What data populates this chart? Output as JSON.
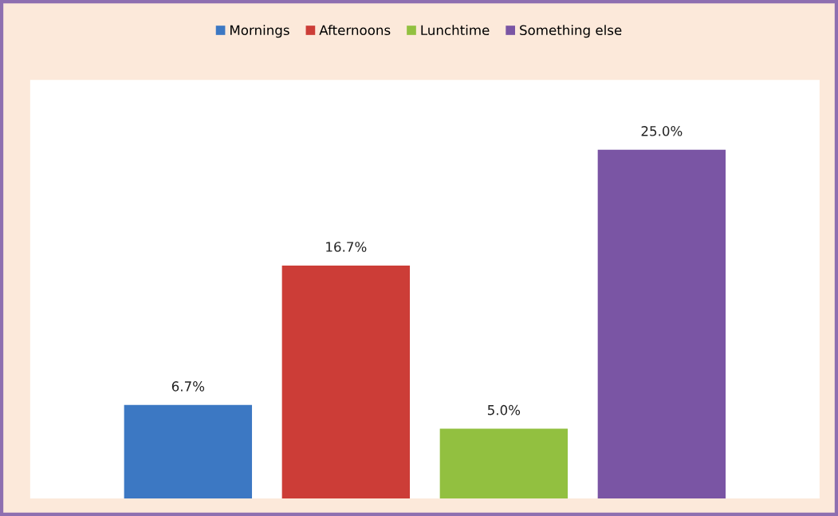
{
  "chart_data": {
    "type": "bar",
    "categories": [
      null,
      null,
      null,
      null
    ],
    "stacked": true,
    "series": [
      {
        "name": "Mornings",
        "color": "#3c78c3",
        "values": [
          6.7,
          null,
          null,
          null
        ],
        "value_labels": [
          "6.7%",
          null,
          null,
          null
        ]
      },
      {
        "name": "Afternoons",
        "color": "#cc3d37",
        "values": [
          null,
          16.7,
          null,
          null
        ],
        "value_labels": [
          null,
          "16.7%",
          null,
          null
        ]
      },
      {
        "name": "Lunchtime",
        "color": "#92c040",
        "values": [
          null,
          null,
          5.0,
          null
        ],
        "value_labels": [
          null,
          null,
          "5.0%",
          null
        ]
      },
      {
        "name": "Something else",
        "color": "#7a55a4",
        "values": [
          null,
          null,
          null,
          25.0
        ],
        "value_labels": [
          null,
          null,
          null,
          "25.0%"
        ]
      }
    ],
    "ylim": [
      0,
      30
    ],
    "tick_labels": false,
    "grid": false,
    "legend": "top"
  }
}
